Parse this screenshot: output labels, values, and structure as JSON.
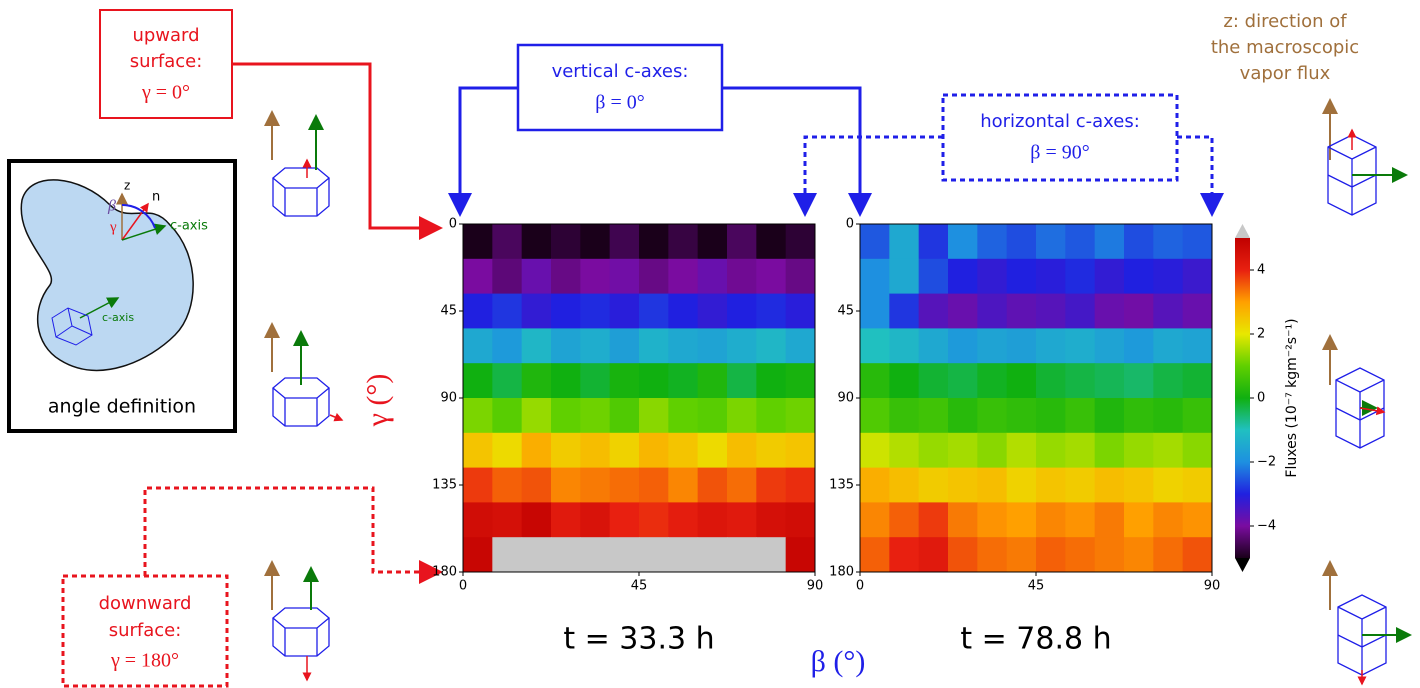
{
  "chart_data": [
    {
      "type": "heatmap",
      "title": "t = 33.3 h",
      "xlim": [
        0,
        90
      ],
      "xticks": [
        0,
        45,
        90
      ],
      "ylim": [
        180,
        0
      ],
      "yticks": [
        0,
        45,
        90,
        135,
        180
      ],
      "z": [
        [
          -5,
          -4.5,
          -5,
          -4.8,
          -5,
          -4.6,
          -5,
          -4.7,
          -5,
          -4.5,
          -5,
          -4.8
        ],
        [
          -4,
          -4.3,
          -3.8,
          -4.2,
          -4,
          -3.9,
          -4.2,
          -4,
          -3.8,
          -4.1,
          -4,
          -4.2
        ],
        [
          -3,
          -2.8,
          -3.2,
          -3,
          -2.9,
          -3.1,
          -2.8,
          -3,
          -3.2,
          -3,
          -2.9,
          -3.1
        ],
        [
          -1.5,
          -1.8,
          -1.2,
          -1.6,
          -1.4,
          -1.7,
          -1.3,
          -1.5,
          -1.6,
          -1.4,
          -1.2,
          -1.5
        ],
        [
          0,
          -0.3,
          0.2,
          0,
          -0.2,
          0.1,
          0,
          -0.1,
          0.2,
          -0.3,
          0,
          0.1
        ],
        [
          1.2,
          0.9,
          1.4,
          1,
          1.1,
          0.8,
          1.3,
          1,
          0.9,
          1.2,
          1,
          1.1
        ],
        [
          2.5,
          2.2,
          2.8,
          2.4,
          2.6,
          2.3,
          2.7,
          2.5,
          2.2,
          2.6,
          2.4,
          2.5
        ],
        [
          3.8,
          3.5,
          3.6,
          3.2,
          3.3,
          3.4,
          3.5,
          3.2,
          3.6,
          3.4,
          3.8,
          3.9
        ],
        [
          4.6,
          4.5,
          4.8,
          4.2,
          4.4,
          4.0,
          3.9,
          4.1,
          4.3,
          4.2,
          4.5,
          4.6
        ],
        [
          4.8,
          5.5,
          5.2,
          5.5,
          5.5,
          5.5,
          5.5,
          5.5,
          5.5,
          5.2,
          5.5,
          4.8
        ]
      ]
    },
    {
      "type": "heatmap",
      "title": "t = 78.8 h",
      "xlim": [
        0,
        90
      ],
      "xticks": [
        0,
        45,
        90
      ],
      "ylim": [
        180,
        0
      ],
      "yticks": [
        0,
        45,
        90,
        135,
        180
      ],
      "z": [
        [
          -2.5,
          -1.5,
          -2.8,
          -2,
          -2.4,
          -2.6,
          -2.3,
          -2.5,
          -2.2,
          -2.6,
          -2.4,
          -2.5
        ],
        [
          -2,
          -1.5,
          -2.6,
          -3,
          -3.2,
          -3,
          -3.1,
          -2.9,
          -3.2,
          -3,
          -3.1,
          -3.3
        ],
        [
          -2,
          -2.8,
          -3.6,
          -3.8,
          -3.5,
          -3.7,
          -3.6,
          -3.4,
          -3.8,
          -3.9,
          -3.6,
          -3.8
        ],
        [
          -1,
          -1.2,
          -1.5,
          -1.8,
          -1.6,
          -1.7,
          -1.5,
          -1.4,
          -1.6,
          -1.8,
          -1.5,
          -1.6
        ],
        [
          0.3,
          0,
          -0.2,
          -0.3,
          -0.1,
          0,
          -0.2,
          -0.3,
          -0.4,
          -0.5,
          -0.3,
          -0.2
        ],
        [
          0.8,
          0.5,
          0.6,
          0.3,
          0.5,
          0.4,
          0.3,
          0.5,
          0.2,
          0.4,
          0.3,
          0.5
        ],
        [
          1.8,
          1.6,
          1.4,
          1.5,
          1.3,
          1.6,
          1.4,
          1.5,
          1.2,
          1.4,
          1.5,
          1.3
        ],
        [
          2.8,
          2.6,
          2.4,
          2.5,
          2.6,
          2.3,
          2.5,
          2.4,
          2.6,
          2.5,
          2.3,
          2.4
        ],
        [
          3.2,
          3.5,
          3.8,
          3.3,
          3.1,
          3.0,
          3.2,
          3.1,
          3.3,
          3.0,
          3.2,
          3.1
        ],
        [
          3.5,
          4,
          4.2,
          3.6,
          3.4,
          3.3,
          3.5,
          3.4,
          3.3,
          3.2,
          3.4,
          3.6
        ]
      ],
      "colorbar": {
        "label": "Fluxes (10⁻⁷ kgm⁻²s⁻¹)",
        "clim": [
          -5,
          5
        ],
        "ticks": [
          {
            "value": -4,
            "label": "−4"
          },
          {
            "value": -2,
            "label": "−2"
          },
          0,
          2,
          4
        ],
        "colormap": [
          "#1a001a",
          "#7a0ca0",
          "#2020e0",
          "#1e90e0",
          "#20c0c0",
          "#10b010",
          "#60d000",
          "#e8e800",
          "#ffa000",
          "#e82010",
          "#c00000"
        ],
        "over_color": "#c8c8c8",
        "under_color": "#000000"
      }
    }
  ],
  "annotations": {
    "upward": [
      "upward",
      "surface:",
      "γ = 0°"
    ],
    "downward": [
      "downward",
      "surface:",
      "γ = 180°"
    ],
    "vertical": [
      "vertical c-axes:",
      "β = 0°"
    ],
    "horizontal": [
      "horizontal c-axes:",
      "β = 90°"
    ],
    "z_direction": [
      "z: direction of",
      "the macroscopic",
      "vapor flux"
    ],
    "inset": {
      "title": "angle definition",
      "z": "z",
      "n": "n",
      "beta": "β",
      "gamma": "γ",
      "c_axis_1": "c-axis",
      "c_axis_2": "c-axis"
    },
    "y_label": "γ (°)",
    "x_label": "β (°)"
  }
}
